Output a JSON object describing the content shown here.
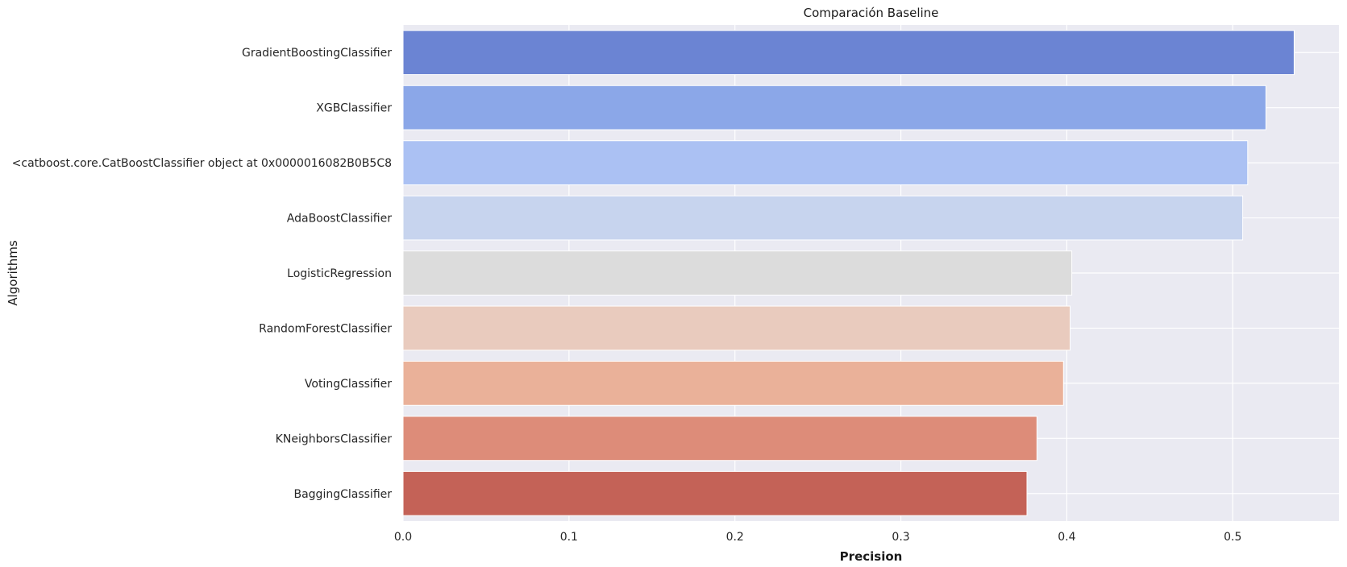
{
  "chart_data": {
    "type": "bar",
    "orientation": "horizontal",
    "title": "Comparación Baseline",
    "xlabel": "Precision",
    "ylabel": "Algorithms",
    "categories": [
      "GradientBoostingClassifier",
      "XGBClassifier",
      "<catboost.core.CatBoostClassifier object at 0x0000016082B0B5C8",
      "AdaBoostClassifier",
      "LogisticRegression",
      "RandomForestClassifier",
      "VotingClassifier",
      "KNeighborsClassifier",
      "BaggingClassifier"
    ],
    "values": [
      0.537,
      0.52,
      0.509,
      0.506,
      0.403,
      0.402,
      0.398,
      0.382,
      0.376
    ],
    "xlim": [
      0,
      0.564
    ],
    "xticks": [
      0.0,
      0.1,
      0.2,
      0.3,
      0.4,
      0.5
    ],
    "xtick_labels": [
      "0.0",
      "0.1",
      "0.2",
      "0.3",
      "0.4",
      "0.5"
    ],
    "grid": true,
    "colors": [
      "#6b84d3",
      "#8ba7e8",
      "#abc1f3",
      "#c7d4ee",
      "#dcdcdc",
      "#e9cbbe",
      "#eab199",
      "#dd8c79",
      "#c46257"
    ],
    "background": "#eaeaf2",
    "grid_color": "#ffffff"
  }
}
